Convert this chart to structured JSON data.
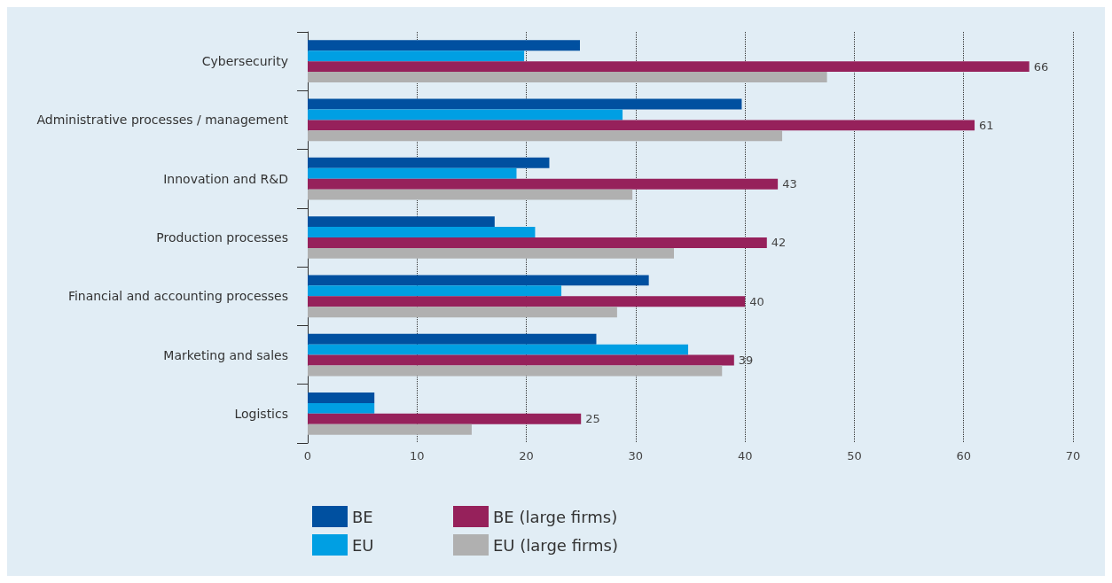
{
  "chart_data": {
    "type": "bar",
    "orientation": "horizontal",
    "categories": [
      "Cybersecurity",
      "Administrative processes / management",
      "Innovation and R&D",
      "Production processes",
      "Financial and accounting processes",
      "Marketing and sales",
      "Logistics"
    ],
    "series": [
      {
        "name": "BE",
        "color": "#0050a0",
        "values": [
          24.9,
          39.7,
          22.1,
          17.1,
          31.2,
          26.4,
          6.1
        ]
      },
      {
        "name": "EU",
        "color": "#009fe3",
        "values": [
          19.8,
          28.8,
          19.1,
          20.8,
          23.2,
          34.8,
          6.1
        ]
      },
      {
        "name": "BE (large firms)",
        "color": "#96215b",
        "values": [
          66,
          61,
          43,
          42,
          40,
          39,
          25
        ],
        "value_labels": [
          "66",
          "61",
          "43",
          "42",
          "40",
          "39",
          "25"
        ]
      },
      {
        "name": "EU (large firms)",
        "color": "#b0b0b0",
        "values": [
          47.5,
          43.4,
          29.7,
          33.5,
          28.3,
          37.9,
          15.0
        ]
      }
    ],
    "xlim": [
      0,
      70
    ],
    "xticks": [
      0,
      10,
      20,
      30,
      40,
      50,
      60,
      70
    ],
    "grid": "x",
    "legend": "bottom"
  }
}
